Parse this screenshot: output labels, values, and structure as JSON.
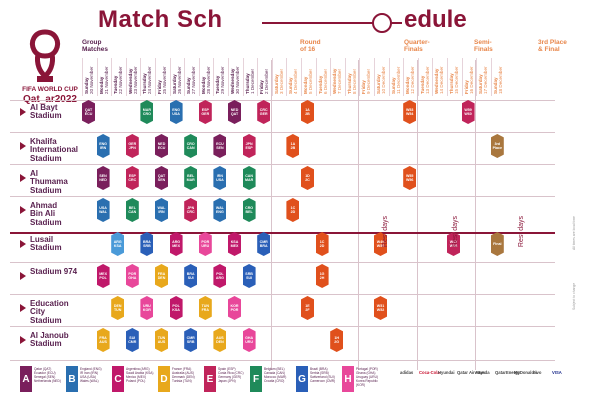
{
  "title": {
    "main": "Match Sch",
    "tail": "edule"
  },
  "brand": {
    "line1": "FIFA WORLD CUP",
    "line2": "Qat_ar2022"
  },
  "stages": [
    {
      "id": "group",
      "label": "Group\nMatches",
      "color": "#5a2250"
    },
    {
      "id": "r16",
      "label": "Round\nof 16",
      "color": "#e8864a"
    },
    {
      "id": "qf",
      "label": "Quarter-\nFinals",
      "color": "#e8864a"
    },
    {
      "id": "sf",
      "label": "Semi-\nFinals",
      "color": "#e8864a"
    },
    {
      "id": "final",
      "label": "3rd Place\n& Final",
      "color": "#e8864a"
    }
  ],
  "dates": [
    {
      "day": "Sunday",
      "date": "20 November"
    },
    {
      "day": "Monday",
      "date": "21 November"
    },
    {
      "day": "Tuesday",
      "date": "22 November"
    },
    {
      "day": "Wednesday",
      "date": "23 November"
    },
    {
      "day": "Thursday",
      "date": "24 November"
    },
    {
      "day": "Friday",
      "date": "25 November"
    },
    {
      "day": "Saturday",
      "date": "26 November"
    },
    {
      "day": "Sunday",
      "date": "27 November"
    },
    {
      "day": "Monday",
      "date": "28 November"
    },
    {
      "day": "Tuesday",
      "date": "29 November"
    },
    {
      "day": "Wednesday",
      "date": "30 November"
    },
    {
      "day": "Thursday",
      "date": "1 December"
    },
    {
      "day": "Friday",
      "date": "2 December"
    },
    {
      "day": "Saturday",
      "date": "3 December"
    },
    {
      "day": "Sunday",
      "date": "4 December"
    },
    {
      "day": "Monday",
      "date": "5 December"
    },
    {
      "day": "Tuesday",
      "date": "6 December"
    },
    {
      "day": "Wednesday",
      "date": "7 December"
    },
    {
      "day": "Thursday",
      "date": "8 December"
    },
    {
      "day": "Friday",
      "date": "9 December"
    },
    {
      "day": "Saturday",
      "date": "10 December"
    },
    {
      "day": "Sunday",
      "date": "11 December"
    },
    {
      "day": "Monday",
      "date": "12 December"
    },
    {
      "day": "Tuesday",
      "date": "13 December"
    },
    {
      "day": "Wednesday",
      "date": "14 December"
    },
    {
      "day": "Thursday",
      "date": "15 December"
    },
    {
      "day": "Friday",
      "date": "16 December"
    },
    {
      "day": "Saturday",
      "date": "17 December"
    },
    {
      "day": "Sunday",
      "date": "18 December"
    }
  ],
  "stadiums": [
    {
      "name": "Al Bayt\nStadium"
    },
    {
      "name": "Khalifa\nInternational\nStadium"
    },
    {
      "name": "Al\nThumama\nStadium"
    },
    {
      "name": "Ahmad\nBin Ali\nStadium"
    },
    {
      "name": "Lusail\nStadium"
    },
    {
      "name": "Stadium 974"
    },
    {
      "name": "Education\nCity\nStadium"
    },
    {
      "name": "Al Janoub\nStadium"
    }
  ],
  "matches": [
    {
      "row": 0,
      "col": 0,
      "t1": "QAT",
      "t2": "ECU",
      "color": "#7a1f5c"
    },
    {
      "row": 0,
      "col": 4,
      "t1": "MAR",
      "t2": "CRO",
      "color": "#1f8a5a"
    },
    {
      "row": 0,
      "col": 6,
      "t1": "ENG",
      "t2": "USA",
      "color": "#2a6fb0"
    },
    {
      "row": 0,
      "col": 8,
      "t1": "ESP",
      "t2": "GER",
      "color": "#c0245a"
    },
    {
      "row": 0,
      "col": 10,
      "t1": "NED",
      "t2": "QAT",
      "color": "#7a1f5c"
    },
    {
      "row": 0,
      "col": 12,
      "t1": "CRC",
      "t2": "GER",
      "color": "#c0245a"
    },
    {
      "row": 0,
      "col": 15,
      "t1": "1A",
      "t2": "2B",
      "color": "#e0501c"
    },
    {
      "row": 0,
      "col": 22,
      "t1": "W53",
      "t2": "W54",
      "color": "#e0501c"
    },
    {
      "row": 0,
      "col": 26,
      "t1": "W59",
      "t2": "W60",
      "color": "#c0245a"
    },
    {
      "row": 1,
      "col": 1,
      "t1": "ENG",
      "t2": "IRN",
      "color": "#2a6fb0"
    },
    {
      "row": 1,
      "col": 3,
      "t1": "GER",
      "t2": "JPN",
      "color": "#c0245a"
    },
    {
      "row": 1,
      "col": 5,
      "t1": "NED",
      "t2": "ECU",
      "color": "#7a1f5c"
    },
    {
      "row": 1,
      "col": 7,
      "t1": "CRO",
      "t2": "CAN",
      "color": "#1f8a5a"
    },
    {
      "row": 1,
      "col": 9,
      "t1": "ECU",
      "t2": "SEN",
      "color": "#7a1f5c"
    },
    {
      "row": 1,
      "col": 11,
      "t1": "JPN",
      "t2": "ESP",
      "color": "#c0245a"
    },
    {
      "row": 1,
      "col": 14,
      "t1": "1A",
      "t2": "2B",
      "color": "#e0501c"
    },
    {
      "row": 1,
      "col": 28,
      "t1": "3rd",
      "t2": "Place",
      "color": "#a9773e"
    },
    {
      "row": 2,
      "col": 1,
      "t1": "SEN",
      "t2": "NED",
      "color": "#7a1f5c"
    },
    {
      "row": 2,
      "col": 3,
      "t1": "ESP",
      "t2": "CRC",
      "color": "#c0245a"
    },
    {
      "row": 2,
      "col": 5,
      "t1": "QAT",
      "t2": "SEN",
      "color": "#7a1f5c"
    },
    {
      "row": 2,
      "col": 7,
      "t1": "BEL",
      "t2": "MAR",
      "color": "#1f8a5a"
    },
    {
      "row": 2,
      "col": 9,
      "t1": "IRN",
      "t2": "USA",
      "color": "#2a6fb0"
    },
    {
      "row": 2,
      "col": 11,
      "t1": "CAN",
      "t2": "MAR",
      "color": "#1f8a5a"
    },
    {
      "row": 2,
      "col": 15,
      "t1": "1D",
      "t2": "2C",
      "color": "#e0501c"
    },
    {
      "row": 2,
      "col": 22,
      "t1": "W55",
      "t2": "W56",
      "color": "#e0501c"
    },
    {
      "row": 3,
      "col": 1,
      "t1": "USA",
      "t2": "WAL",
      "color": "#2a6fb0"
    },
    {
      "row": 3,
      "col": 3,
      "t1": "BEL",
      "t2": "CAN",
      "color": "#1f8a5a"
    },
    {
      "row": 3,
      "col": 5,
      "t1": "WAL",
      "t2": "IRN",
      "color": "#2a6fb0"
    },
    {
      "row": 3,
      "col": 7,
      "t1": "JPN",
      "t2": "CRC",
      "color": "#c0245a"
    },
    {
      "row": 3,
      "col": 9,
      "t1": "WAL",
      "t2": "ENG",
      "color": "#2a6fb0"
    },
    {
      "row": 3,
      "col": 11,
      "t1": "CRO",
      "t2": "BEL",
      "color": "#1f8a5a"
    },
    {
      "row": 3,
      "col": 14,
      "t1": "1C",
      "t2": "2D",
      "color": "#e0501c"
    },
    {
      "row": 4,
      "col": 2,
      "t1": "ARG",
      "t2": "KSA",
      "color": "#4a9ad8"
    },
    {
      "row": 4,
      "col": 4,
      "t1": "BRA",
      "t2": "SRB",
      "color": "#2a5fb8"
    },
    {
      "row": 4,
      "col": 6,
      "t1": "ARG",
      "t2": "MEX",
      "color": "#c0186a"
    },
    {
      "row": 4,
      "col": 8,
      "t1": "POR",
      "t2": "URU",
      "color": "#e8479a"
    },
    {
      "row": 4,
      "col": 10,
      "t1": "KSA",
      "t2": "MEX",
      "color": "#c0186a"
    },
    {
      "row": 4,
      "col": 12,
      "t1": "CMR",
      "t2": "BRA",
      "color": "#2a5fb8"
    },
    {
      "row": 4,
      "col": 16,
      "t1": "1C",
      "t2": "2D",
      "color": "#e0501c"
    },
    {
      "row": 4,
      "col": 20,
      "t1": "W49",
      "t2": "W50",
      "color": "#e0501c"
    },
    {
      "row": 4,
      "col": 25,
      "t1": "W57",
      "t2": "W58",
      "color": "#c0245a"
    },
    {
      "row": 4,
      "col": 28,
      "t1": "Final",
      "t2": "",
      "color": "#a9773e"
    },
    {
      "row": 5,
      "col": 1,
      "t1": "MEX",
      "t2": "POL",
      "color": "#c0186a"
    },
    {
      "row": 5,
      "col": 3,
      "t1": "POR",
      "t2": "GHA",
      "color": "#e8479a"
    },
    {
      "row": 5,
      "col": 5,
      "t1": "FRA",
      "t2": "DEN",
      "color": "#e8a81c"
    },
    {
      "row": 5,
      "col": 7,
      "t1": "BRA",
      "t2": "SUI",
      "color": "#2a5fb8"
    },
    {
      "row": 5,
      "col": 9,
      "t1": "POL",
      "t2": "ARG",
      "color": "#c0186a"
    },
    {
      "row": 5,
      "col": 11,
      "t1": "SRB",
      "t2": "SUI",
      "color": "#2a5fb8"
    },
    {
      "row": 5,
      "col": 16,
      "t1": "1G",
      "t2": "2H",
      "color": "#e0501c"
    },
    {
      "row": 6,
      "col": 2,
      "t1": "DEN",
      "t2": "TUN",
      "color": "#e8a81c"
    },
    {
      "row": 6,
      "col": 4,
      "t1": "URU",
      "t2": "KOR",
      "color": "#e8479a"
    },
    {
      "row": 6,
      "col": 6,
      "t1": "POL",
      "t2": "KSA",
      "color": "#c0186a"
    },
    {
      "row": 6,
      "col": 8,
      "t1": "TUN",
      "t2": "FRA",
      "color": "#e8a81c"
    },
    {
      "row": 6,
      "col": 10,
      "t1": "KOR",
      "t2": "POR",
      "color": "#e8479a"
    },
    {
      "row": 6,
      "col": 15,
      "t1": "1E",
      "t2": "2F",
      "color": "#e0501c"
    },
    {
      "row": 6,
      "col": 20,
      "t1": "W51",
      "t2": "W52",
      "color": "#e0501c"
    },
    {
      "row": 7,
      "col": 1,
      "t1": "FRA",
      "t2": "AUS",
      "color": "#e8a81c"
    },
    {
      "row": 7,
      "col": 3,
      "t1": "SUI",
      "t2": "CMR",
      "color": "#2a5fb8"
    },
    {
      "row": 7,
      "col": 5,
      "t1": "TUN",
      "t2": "AUS",
      "color": "#e8a81c"
    },
    {
      "row": 7,
      "col": 7,
      "t1": "CMR",
      "t2": "SRB",
      "color": "#2a5fb8"
    },
    {
      "row": 7,
      "col": 9,
      "t1": "AUS",
      "t2": "DEN",
      "color": "#e8a81c"
    },
    {
      "row": 7,
      "col": 11,
      "t1": "GHA",
      "t2": "URU",
      "color": "#e8479a"
    },
    {
      "row": 7,
      "col": 17,
      "t1": "1H",
      "t2": "2G",
      "color": "#e0501c"
    }
  ],
  "rest_days": [
    {
      "label": "Rest days"
    },
    {
      "label": "Rest days"
    },
    {
      "label": "Rest days"
    }
  ],
  "legend": [
    {
      "letter": "A",
      "color": "#7a1f5c",
      "text": "Qatar (QAT)\nEcuador (ECU)\nSenegal (SEN)\nNetherlands (NED)"
    },
    {
      "letter": "B",
      "color": "#2a6fb0",
      "text": "England (ENG)\nIR Iran (IRN)\nUSA (USA)\nWales (WAL)"
    },
    {
      "letter": "C",
      "color": "#c0186a",
      "text": "Argentina (ARG)\nSaudi Arabia (KSA)\nMexico (MEX)\nPoland (POL)"
    },
    {
      "letter": "D",
      "color": "#e8a81c",
      "text": "France (FRA)\nAustralia (AUS)\nDenmark (DEN)\nTunisia (TUN)"
    },
    {
      "letter": "E",
      "color": "#c0245a",
      "text": "Spain (ESP)\nCosta Rica (CRC)\nGermany (GER)\nJapan (JPN)"
    },
    {
      "letter": "F",
      "color": "#1f8a5a",
      "text": "Belgium (BEL)\nCanada (CAN)\nMorocco (MAR)\nCroatia (CRO)"
    },
    {
      "letter": "G",
      "color": "#2a5fb8",
      "text": "Brazil (BRA)\nSerbia (SRB)\nSwitzerland (SUI)\nCameroon (CMR)"
    },
    {
      "letter": "H",
      "color": "#e8479a",
      "text": "Portugal (POR)\nGhana (GHA)\nUruguay (URU)\nKorea Republic (KOR)"
    }
  ],
  "sponsors": [
    "adidas",
    "Coca-Cola",
    "Hyundai",
    "Qatar Airways",
    "Wanda",
    "QatarEnergy",
    "McDonald's",
    "vivo",
    "VISA"
  ],
  "sidenotes": [
    "All times are local time",
    "Subject to change"
  ]
}
